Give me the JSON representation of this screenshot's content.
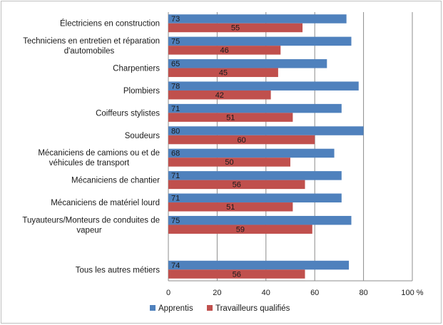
{
  "chart_data": {
    "type": "bar",
    "orientation": "horizontal",
    "categories": [
      [
        "Électriciens en construction"
      ],
      [
        "Techniciens en entretien et réparation",
        "d'automobiles"
      ],
      [
        "Charpentiers"
      ],
      [
        "Plombiers"
      ],
      [
        "Coiffeurs stylistes"
      ],
      [
        "Soudeurs"
      ],
      [
        "Mécaniciens de camions ou et de",
        "véhicules de transport"
      ],
      [
        "Mécaniciens de chantier"
      ],
      [
        "Mécaniciens de matériel lourd"
      ],
      [
        "Tuyauteurs/Monteurs de conduites de",
        "vapeur"
      ],
      [],
      [
        "Tous les autres métiers"
      ]
    ],
    "series": [
      {
        "name": "Apprentis",
        "color": "#4f81bd",
        "values": [
          73,
          75,
          65,
          78,
          71,
          80,
          68,
          71,
          71,
          75,
          null,
          74
        ]
      },
      {
        "name": "Travailleurs qualifiés",
        "color": "#c0504d",
        "values": [
          55,
          46,
          45,
          42,
          51,
          60,
          50,
          56,
          51,
          59,
          null,
          56
        ]
      }
    ],
    "xlim": [
      0,
      100
    ],
    "xticks": [
      "0",
      "20",
      "40",
      "60",
      "80",
      "100 %"
    ],
    "grid": true,
    "legend": "bottom"
  }
}
